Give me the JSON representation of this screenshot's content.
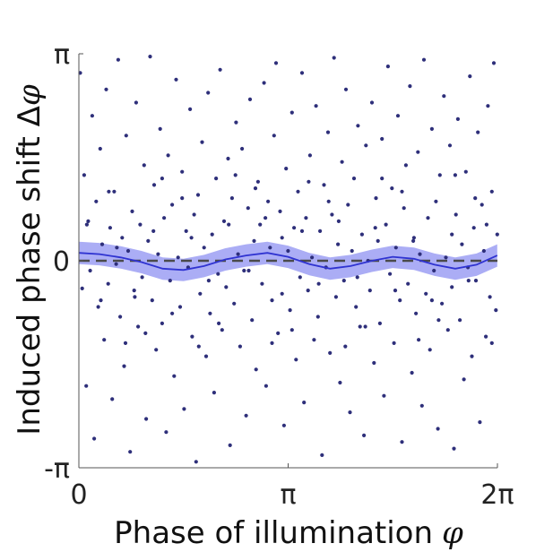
{
  "chart_data": {
    "type": "scatter",
    "title": "",
    "xlabel": "Phase of illumination",
    "xlabel_symbol": "φ",
    "ylabel": "Induced phase shift Δ",
    "ylabel_symbol": "φ",
    "xlim": [
      0,
      6.2832
    ],
    "ylim": [
      -3.1416,
      3.1416
    ],
    "x_ticks": [
      {
        "value": 0,
        "label": "0"
      },
      {
        "value": 3.1416,
        "label": "π"
      },
      {
        "value": 6.2832,
        "label": "2π"
      }
    ],
    "y_ticks": [
      {
        "value": -3.1416,
        "label": "-π"
      },
      {
        "value": 0,
        "label": "0"
      },
      {
        "value": 3.1416,
        "label": "π"
      }
    ],
    "reference_line": {
      "y": 0,
      "style": "dashed",
      "color": "#4a4a4a"
    },
    "grid": false,
    "legend": "none",
    "series": [
      {
        "kind": "points",
        "color": "#2e2f7a",
        "points": [
          [
            0.02,
            2.85
          ],
          [
            0.05,
            -0.42
          ],
          [
            0.08,
            1.3
          ],
          [
            0.11,
            -1.9
          ],
          [
            0.14,
            0.6
          ],
          [
            0.17,
            -0.15
          ],
          [
            0.2,
            2.2
          ],
          [
            0.23,
            -2.7
          ],
          [
            0.26,
            0.9
          ],
          [
            0.29,
            -0.7
          ],
          [
            0.32,
            1.7
          ],
          [
            0.35,
            0.25
          ],
          [
            0.38,
            -1.2
          ],
          [
            0.41,
            2.6
          ],
          [
            0.44,
            -0.35
          ],
          [
            0.47,
            0.5
          ],
          [
            0.5,
            -2.1
          ],
          [
            0.53,
            1.05
          ],
          [
            0.56,
            -0.05
          ],
          [
            0.59,
            3.05
          ],
          [
            0.62,
            -0.85
          ],
          [
            0.65,
            0.35
          ],
          [
            0.68,
            -1.6
          ],
          [
            0.71,
            1.9
          ],
          [
            0.74,
            0.15
          ],
          [
            0.77,
            -2.9
          ],
          [
            0.8,
            0.75
          ],
          [
            0.83,
            -0.45
          ],
          [
            0.86,
            2.4
          ],
          [
            0.89,
            -1.0
          ],
          [
            0.92,
            0.55
          ],
          [
            0.95,
            -0.25
          ],
          [
            0.98,
            1.45
          ],
          [
            1.01,
            -2.4
          ],
          [
            1.04,
            0.3
          ],
          [
            1.07,
            3.1
          ],
          [
            1.1,
            -0.6
          ],
          [
            1.13,
            1.15
          ],
          [
            1.16,
            -1.35
          ],
          [
            1.19,
            0.1
          ],
          [
            1.22,
            2.0
          ],
          [
            1.25,
            -0.95
          ],
          [
            1.28,
            0.65
          ],
          [
            1.31,
            -2.6
          ],
          [
            1.34,
            1.6
          ],
          [
            1.37,
            -0.3
          ],
          [
            1.4,
            0.85
          ],
          [
            1.43,
            -1.75
          ],
          [
            1.46,
            2.75
          ],
          [
            1.49,
            0.05
          ],
          [
            1.52,
            -0.7
          ],
          [
            1.55,
            1.35
          ],
          [
            1.58,
            -2.25
          ],
          [
            1.61,
            0.45
          ],
          [
            1.64,
            -0.1
          ],
          [
            1.67,
            2.3
          ],
          [
            1.7,
            -1.15
          ],
          [
            1.73,
            0.7
          ],
          [
            1.76,
            -3.05
          ],
          [
            1.79,
            1.0
          ],
          [
            1.82,
            -0.5
          ],
          [
            1.85,
            1.8
          ],
          [
            1.88,
            0.2
          ],
          [
            1.91,
            -1.45
          ],
          [
            1.94,
            2.55
          ],
          [
            1.97,
            -0.8
          ],
          [
            2.0,
            0.4
          ],
          [
            2.03,
            -2.0
          ],
          [
            2.06,
            1.25
          ],
          [
            2.09,
            -0.2
          ],
          [
            2.12,
            2.9
          ],
          [
            2.15,
            -1.05
          ],
          [
            2.18,
            0.6
          ],
          [
            2.21,
            -0.4
          ],
          [
            2.24,
            1.55
          ],
          [
            2.27,
            -2.8
          ],
          [
            2.3,
            0.95
          ],
          [
            2.33,
            -0.65
          ],
          [
            2.36,
            2.1
          ],
          [
            2.39,
            0.1
          ],
          [
            2.42,
            -1.3
          ],
          [
            2.45,
            1.7
          ],
          [
            2.48,
            -0.15
          ],
          [
            2.51,
            -2.35
          ],
          [
            2.54,
            0.8
          ],
          [
            2.57,
            2.45
          ],
          [
            2.6,
            -0.9
          ],
          [
            2.63,
            0.3
          ],
          [
            2.66,
            -1.65
          ],
          [
            2.69,
            1.2
          ],
          [
            2.72,
            0.55
          ],
          [
            2.75,
            -0.35
          ],
          [
            2.78,
            2.7
          ],
          [
            2.81,
            -1.9
          ],
          [
            2.84,
            0.9
          ],
          [
            2.87,
            0.2
          ],
          [
            2.9,
            -0.6
          ],
          [
            2.93,
            1.9
          ],
          [
            2.96,
            3.0
          ],
          [
            2.99,
            -1.1
          ],
          [
            3.02,
            0.75
          ],
          [
            3.05,
            0.35
          ],
          [
            3.08,
            -2.5
          ],
          [
            3.11,
            1.4
          ],
          [
            3.14,
            0.15
          ],
          [
            3.17,
            -0.75
          ],
          [
            3.2,
            2.25
          ],
          [
            3.23,
            0.5
          ],
          [
            3.26,
            -1.5
          ],
          [
            3.29,
            1.05
          ],
          [
            3.32,
            -0.25
          ],
          [
            3.35,
            2.85
          ],
          [
            3.38,
            -2.15
          ],
          [
            3.41,
            0.65
          ],
          [
            3.44,
            -0.45
          ],
          [
            3.47,
            1.6
          ],
          [
            3.5,
            0.05
          ],
          [
            3.53,
            -1.2
          ],
          [
            3.56,
            2.35
          ],
          [
            3.59,
            -0.85
          ],
          [
            3.62,
            0.45
          ],
          [
            3.65,
            -2.95
          ],
          [
            3.68,
            1.15
          ],
          [
            3.71,
            -0.1
          ],
          [
            3.74,
            1.95
          ],
          [
            3.77,
            -1.4
          ],
          [
            3.8,
            0.7
          ],
          [
            3.83,
            3.08
          ],
          [
            3.86,
            -0.55
          ],
          [
            3.89,
            0.25
          ],
          [
            3.92,
            -1.85
          ],
          [
            3.95,
            1.5
          ],
          [
            3.98,
            -0.3
          ],
          [
            4.01,
            2.6
          ],
          [
            4.04,
            0.85
          ],
          [
            4.07,
            -2.3
          ],
          [
            4.1,
            0.15
          ],
          [
            4.13,
            1.25
          ],
          [
            4.16,
            -0.7
          ],
          [
            4.19,
            2.05
          ],
          [
            4.22,
            -1.0
          ],
          [
            4.25,
            0.4
          ],
          [
            4.28,
            -2.65
          ],
          [
            4.31,
            1.75
          ],
          [
            4.34,
            0.0
          ],
          [
            4.37,
            -0.45
          ],
          [
            4.4,
            2.4
          ],
          [
            4.43,
            -1.55
          ],
          [
            4.46,
            0.95
          ],
          [
            4.49,
            0.3
          ],
          [
            4.52,
            -0.95
          ],
          [
            4.55,
            1.85
          ],
          [
            4.58,
            -2.05
          ],
          [
            4.61,
            0.55
          ],
          [
            4.64,
            2.95
          ],
          [
            4.67,
            -0.2
          ],
          [
            4.7,
            1.1
          ],
          [
            4.73,
            -1.25
          ],
          [
            4.76,
            0.2
          ],
          [
            4.79,
            2.2
          ],
          [
            4.82,
            -0.6
          ],
          [
            4.85,
            -2.75
          ],
          [
            4.88,
            0.8
          ],
          [
            4.91,
            1.45
          ],
          [
            4.94,
            -0.35
          ],
          [
            4.97,
            2.65
          ],
          [
            5.0,
            -1.7
          ],
          [
            5.03,
            0.35
          ],
          [
            5.06,
            -0.8
          ],
          [
            5.09,
            1.65
          ],
          [
            5.12,
            0.1
          ],
          [
            5.15,
            -2.2
          ],
          [
            5.18,
            3.05
          ],
          [
            5.21,
            -0.5
          ],
          [
            5.24,
            0.65
          ],
          [
            5.27,
            -1.35
          ],
          [
            5.3,
            2.0
          ],
          [
            5.33,
            -0.15
          ],
          [
            5.36,
            0.9
          ],
          [
            5.39,
            -2.55
          ],
          [
            5.42,
            1.3
          ],
          [
            5.45,
            -0.65
          ],
          [
            5.48,
            2.5
          ],
          [
            5.51,
            0.05
          ],
          [
            5.54,
            -1.05
          ],
          [
            5.57,
            1.75
          ],
          [
            5.6,
            -0.4
          ],
          [
            5.63,
            -2.85
          ],
          [
            5.66,
            0.7
          ],
          [
            5.69,
            2.15
          ],
          [
            5.72,
            -0.9
          ],
          [
            5.75,
            0.25
          ],
          [
            5.78,
            -1.8
          ],
          [
            5.81,
            1.35
          ],
          [
            5.84,
            -0.1
          ],
          [
            5.87,
            2.8
          ],
          [
            5.9,
            -1.45
          ],
          [
            5.93,
            0.5
          ],
          [
            5.96,
            -0.3
          ],
          [
            5.99,
            1.95
          ],
          [
            6.02,
            -2.45
          ],
          [
            6.05,
            0.85
          ],
          [
            6.08,
            0.15
          ],
          [
            6.11,
            -1.15
          ],
          [
            6.14,
            2.35
          ],
          [
            6.17,
            -0.55
          ],
          [
            6.2,
            1.05
          ],
          [
            6.23,
            3.0
          ],
          [
            6.26,
            -0.75
          ],
          [
            6.28,
            0.4
          ],
          [
            0.12,
            0.55
          ],
          [
            0.33,
            -0.6
          ],
          [
            0.57,
            0.2
          ],
          [
            0.84,
            -0.55
          ],
          [
            1.12,
            0.45
          ],
          [
            1.4,
            -0.8
          ],
          [
            1.69,
            0.35
          ],
          [
            1.95,
            -0.3
          ],
          [
            2.25,
            0.55
          ],
          [
            2.55,
            -0.15
          ],
          [
            2.8,
            0.65
          ],
          [
            3.05,
            -0.5
          ],
          [
            3.35,
            0.45
          ],
          [
            3.6,
            -0.35
          ],
          [
            3.9,
            0.6
          ],
          [
            4.18,
            -0.25
          ],
          [
            4.45,
            0.5
          ],
          [
            4.75,
            -0.45
          ],
          [
            5.02,
            0.3
          ],
          [
            5.3,
            -0.6
          ],
          [
            5.6,
            0.4
          ],
          [
            5.85,
            -0.3
          ],
          [
            6.12,
            0.55
          ],
          [
            0.45,
            1.05
          ],
          [
            1.0,
            -1.1
          ],
          [
            1.55,
            0.95
          ],
          [
            2.1,
            -0.95
          ],
          [
            2.65,
            1.1
          ],
          [
            3.2,
            -1.05
          ],
          [
            3.75,
            0.9
          ],
          [
            4.3,
            -1.0
          ],
          [
            4.85,
            1.05
          ],
          [
            5.4,
            -0.9
          ],
          [
            5.95,
            0.95
          ],
          [
            0.7,
            -1.25
          ],
          [
            1.25,
            1.25
          ],
          [
            1.8,
            -1.3
          ],
          [
            2.35,
            1.3
          ],
          [
            2.9,
            -1.25
          ],
          [
            3.45,
            1.2
          ],
          [
            4.0,
            -1.3
          ],
          [
            4.55,
            1.25
          ],
          [
            5.1,
            -1.2
          ],
          [
            5.65,
            1.3
          ],
          [
            6.2,
            -1.25
          ]
        ]
      },
      {
        "kind": "band",
        "color": "#2f33d1",
        "fill": "#8f91f1",
        "x": [
          0,
          0.31,
          0.63,
          0.94,
          1.26,
          1.57,
          1.88,
          2.2,
          2.51,
          2.83,
          3.14,
          3.46,
          3.77,
          4.08,
          4.4,
          4.71,
          5.03,
          5.34,
          5.65,
          5.97,
          6.28
        ],
        "y": [
          0.12,
          0.1,
          0.05,
          -0.02,
          -0.12,
          -0.14,
          -0.08,
          0.02,
          0.08,
          0.12,
          0.06,
          -0.05,
          -0.12,
          -0.08,
          0.0,
          0.06,
          0.03,
          -0.06,
          -0.12,
          -0.06,
          0.08
        ],
        "half_width": 0.17
      }
    ]
  }
}
